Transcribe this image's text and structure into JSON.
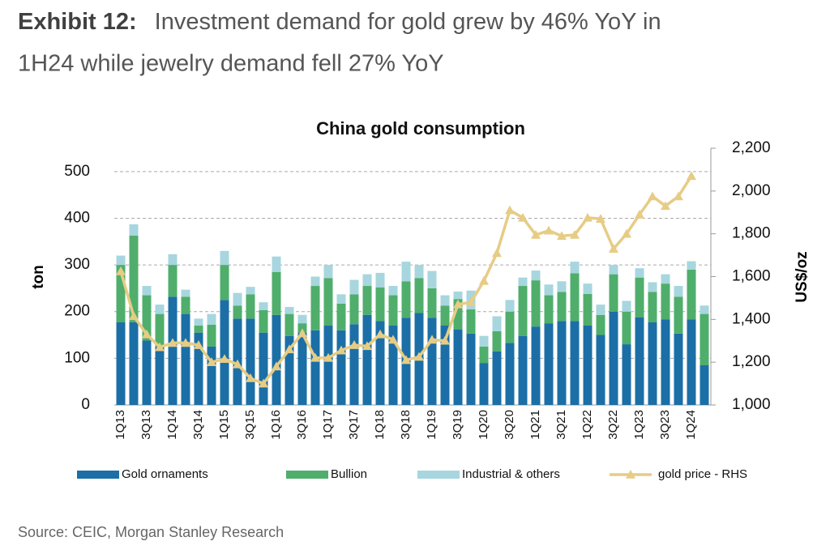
{
  "heading": {
    "label": "Exhibit 12:",
    "lines": [
      "Investment demand for gold grew by 46% YoY in",
      "1H24 while jewelry demand fell 27% YoY"
    ]
  },
  "source": "Source: CEIC, Morgan Stanley Research",
  "chart_data": {
    "type": "bar",
    "stacked": true,
    "title": "China gold consumption",
    "ylabel": "ton",
    "y2label": "US$/oz",
    "categories": [
      "1Q13",
      null,
      "3Q13",
      null,
      "1Q14",
      null,
      "3Q14",
      null,
      "1Q15",
      null,
      "3Q15",
      null,
      "1Q16",
      null,
      "3Q16",
      null,
      "1Q17",
      null,
      "3Q17",
      null,
      "1Q18",
      null,
      "3Q18",
      null,
      "1Q19",
      null,
      "3Q19",
      null,
      "1Q20",
      null,
      "3Q20",
      null,
      "1Q21",
      null,
      "3Q21",
      null,
      "1Q22",
      null,
      "3Q22",
      null,
      "1Q23",
      null,
      "3Q23",
      null,
      "1Q24",
      null
    ],
    "series": [
      {
        "name": "Gold ornaments",
        "color": "#1b6fa6",
        "values": [
          177,
          177,
          138,
          125,
          232,
          195,
          155,
          125,
          225,
          185,
          185,
          155,
          193,
          148,
          155,
          160,
          170,
          160,
          173,
          193,
          180,
          170,
          187,
          197,
          187,
          170,
          162,
          153,
          90,
          115,
          133,
          148,
          168,
          175,
          180,
          180,
          170,
          150,
          200,
          130,
          188,
          177,
          183,
          153,
          183,
          85
        ]
      },
      {
        "name": "Bullion",
        "color": "#4fae6b",
        "values": [
          123,
          186,
          97,
          70,
          68,
          37,
          15,
          47,
          75,
          28,
          52,
          48,
          92,
          47,
          20,
          95,
          102,
          57,
          64,
          62,
          72,
          65,
          78,
          75,
          63,
          43,
          65,
          52,
          35,
          43,
          67,
          107,
          99,
          60,
          62,
          102,
          68,
          43,
          80,
          70,
          85,
          65,
          77,
          79,
          107,
          110
        ]
      },
      {
        "name": "Industrial & others",
        "color": "#a7d6df",
        "values": [
          20,
          24,
          20,
          20,
          23,
          15,
          15,
          23,
          30,
          27,
          16,
          17,
          33,
          15,
          18,
          20,
          28,
          20,
          31,
          25,
          31,
          20,
          42,
          28,
          37,
          22,
          16,
          40,
          23,
          32,
          25,
          18,
          21,
          23,
          23,
          25,
          22,
          22,
          20,
          23,
          20,
          21,
          20,
          23,
          18,
          18
        ]
      },
      {
        "name": "gold price - RHS",
        "type": "line",
        "axis": "y2",
        "color": "#e6cc85",
        "values": [
          1625,
          1415,
          1330,
          1270,
          1290,
          1290,
          1280,
          1200,
          1215,
          1190,
          1125,
          1100,
          1180,
          1260,
          1335,
          1220,
          1220,
          1255,
          1280,
          1275,
          1330,
          1305,
          1210,
          1225,
          1305,
          1300,
          1470,
          1480,
          1580,
          1710,
          1910,
          1875,
          1795,
          1815,
          1790,
          1795,
          1875,
          1870,
          1730,
          1800,
          1890,
          1975,
          1930,
          1975,
          2070,
          null
        ]
      }
    ],
    "ylim": [
      0,
      550
    ],
    "yticks": [
      0,
      100,
      200,
      300,
      400,
      500
    ],
    "y2lim": [
      1000,
      2200
    ],
    "y2ticks": [
      {
        "value": 1000,
        "label": "1,000"
      },
      {
        "value": 1200,
        "label": "1,200"
      },
      {
        "value": 1400,
        "label": "1,400"
      },
      {
        "value": 1600,
        "label": "1,600"
      },
      {
        "value": 1800,
        "label": "1,800"
      },
      {
        "value": 2000,
        "label": "2,000"
      },
      {
        "value": 2200,
        "label": "2,200"
      }
    ],
    "grid": true
  }
}
